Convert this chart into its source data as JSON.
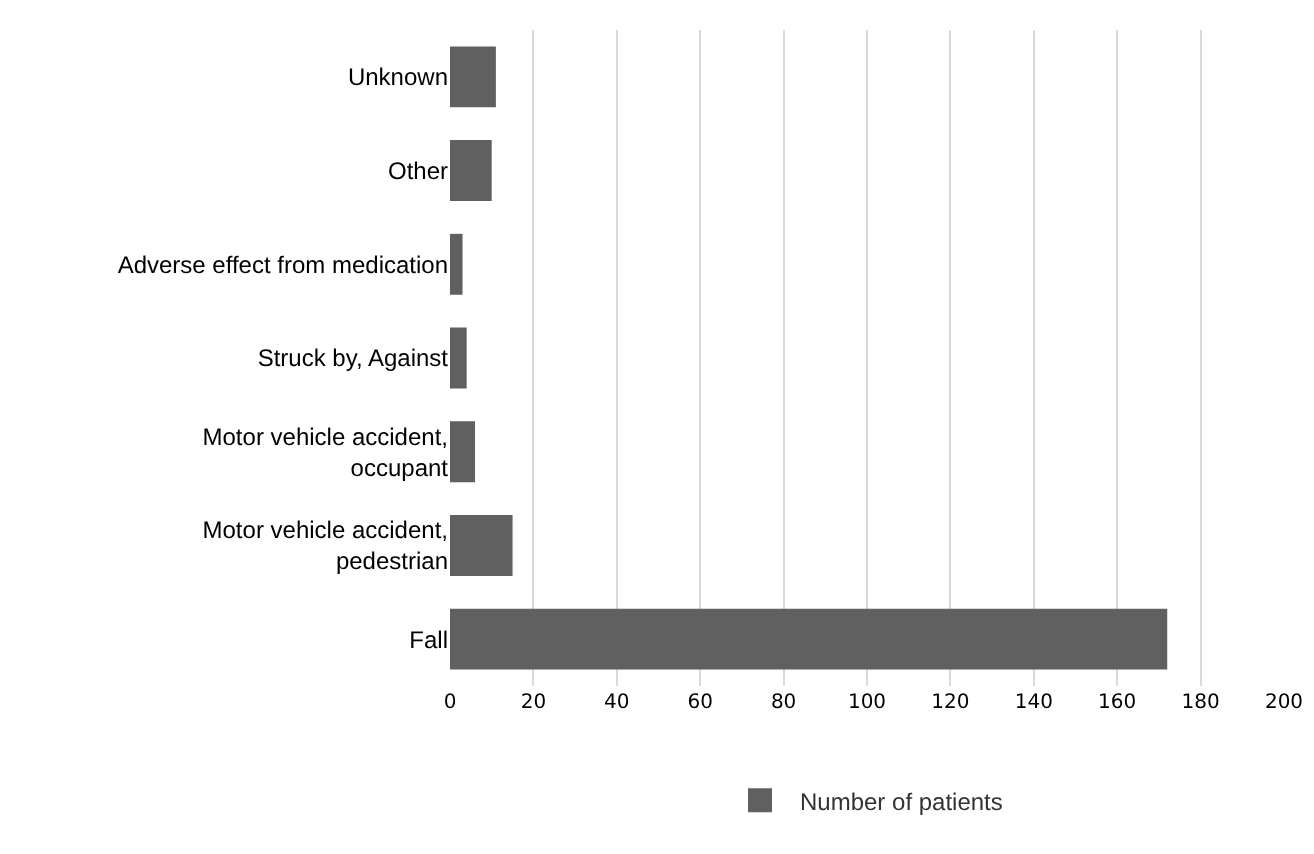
{
  "chart_data": {
    "type": "bar",
    "orientation": "horizontal",
    "categories": [
      "Unknown",
      "Other",
      "Adverse effect from medication",
      "Struck by, Against",
      "Motor vehicle accident, occupant",
      "Motor vehicle accident, pedestrian",
      "Fall"
    ],
    "series": [
      {
        "name": "Number of patients",
        "color": "#606060",
        "values": [
          11,
          10,
          3,
          4,
          6,
          15,
          172
        ]
      }
    ],
    "xlim": [
      0,
      200
    ],
    "xticks": [
      0,
      20,
      40,
      60,
      80,
      100,
      120,
      140,
      160,
      180,
      200
    ],
    "grid": "x",
    "legend": "bottom"
  }
}
